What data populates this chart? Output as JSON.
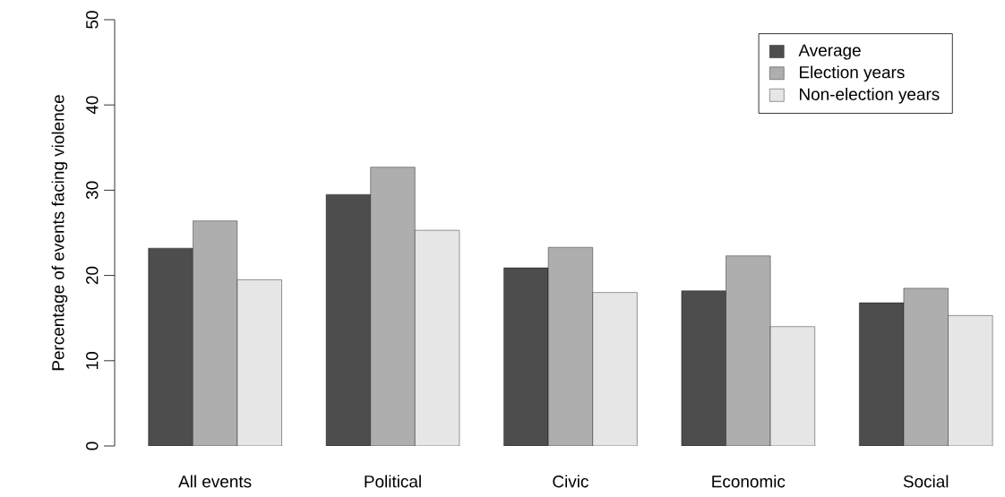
{
  "chart_data": {
    "type": "bar",
    "ylabel": "Percentage of events facing violence",
    "categories": [
      "All events",
      "Political",
      "Civic",
      "Economic",
      "Social"
    ],
    "series": [
      {
        "name": "Average",
        "color": "#4d4d4d",
        "values": [
          23.2,
          29.5,
          20.9,
          18.2,
          16.8
        ]
      },
      {
        "name": "Election years",
        "color": "#aeaeae",
        "values": [
          26.4,
          32.7,
          23.3,
          22.3,
          18.5
        ]
      },
      {
        "name": "Non-election years",
        "color": "#e6e6e6",
        "values": [
          19.5,
          25.3,
          18.0,
          14.0,
          15.3
        ]
      }
    ],
    "ylim": [
      0,
      50
    ],
    "yticks": [
      0,
      10,
      20,
      30,
      40,
      50
    ],
    "legend": "top right",
    "grid": false
  }
}
